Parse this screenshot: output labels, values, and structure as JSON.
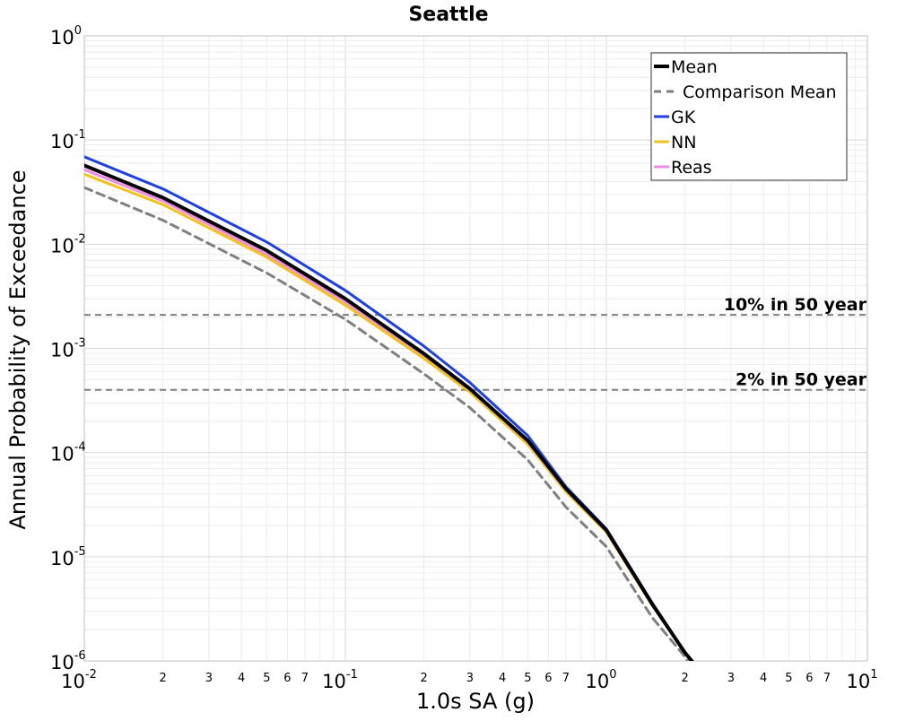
{
  "chart_data": {
    "type": "line",
    "title": "Seattle",
    "xlabel": "1.0s SA (g)",
    "ylabel": "Annual Probability of Exceedance",
    "x_scale": "log",
    "y_scale": "log",
    "xlim": [
      0.01,
      10
    ],
    "ylim": [
      1e-06,
      1
    ],
    "grid": true,
    "legend_position": "top-right",
    "x_major_ticks": [
      {
        "base": "10",
        "exp": "-2"
      },
      {
        "base": "10",
        "exp": "-1"
      },
      {
        "base": "10",
        "exp": "0"
      },
      {
        "base": "10",
        "exp": "1"
      }
    ],
    "x_minor_tick_labels": [
      "2",
      "3",
      "4",
      "5",
      "6",
      "7"
    ],
    "y_major_ticks": [
      {
        "base": "10",
        "exp": "0"
      },
      {
        "base": "10",
        "exp": "-1"
      },
      {
        "base": "10",
        "exp": "-2"
      },
      {
        "base": "10",
        "exp": "-3"
      },
      {
        "base": "10",
        "exp": "-4"
      },
      {
        "base": "10",
        "exp": "-5"
      },
      {
        "base": "10",
        "exp": "-6"
      }
    ],
    "reference_lines": [
      {
        "label": "10% in 50 year",
        "y": 0.0021,
        "color": "#7f7f7f"
      },
      {
        "label": "2% in 50 year",
        "y": 0.0004,
        "color": "#7f7f7f"
      }
    ],
    "series": [
      {
        "name": "Mean",
        "color": "#000000",
        "dash": "solid",
        "x": [
          0.01,
          0.02,
          0.05,
          0.1,
          0.2,
          0.3,
          0.5,
          0.7,
          1.0,
          1.5,
          2.0,
          2.2
        ],
        "y": [
          0.057,
          0.028,
          0.0087,
          0.003,
          0.00089,
          0.00041,
          0.00013,
          4.5e-05,
          1.8e-05,
          3.5e-06,
          1.2e-06,
          9e-07
        ]
      },
      {
        "name": "Comparison Mean",
        "color": "#7f7f7f",
        "dash": "dashed",
        "x": [
          0.01,
          0.02,
          0.05,
          0.1,
          0.2,
          0.3,
          0.5,
          0.7,
          1.0,
          1.5,
          2.0,
          2.1
        ],
        "y": [
          0.035,
          0.017,
          0.0053,
          0.0019,
          0.00057,
          0.00027,
          8.5e-05,
          3e-05,
          1.25e-05,
          2.6e-06,
          1.1e-06,
          9e-07
        ]
      },
      {
        "name": "GK",
        "color": "#1f3fe6",
        "dash": "solid",
        "x": [
          0.01,
          0.02,
          0.05,
          0.1,
          0.2,
          0.3,
          0.5,
          0.7,
          1.0,
          1.5,
          2.0,
          2.2
        ],
        "y": [
          0.069,
          0.034,
          0.0105,
          0.0036,
          0.00105,
          0.00047,
          0.000145,
          4.7e-05,
          1.85e-05,
          3.6e-06,
          1.2e-06,
          9e-07
        ]
      },
      {
        "name": "NN",
        "color": "#f2c21b",
        "dash": "solid",
        "x": [
          0.01,
          0.02,
          0.05,
          0.1,
          0.2,
          0.3,
          0.5,
          0.7,
          1.0,
          1.5,
          2.0,
          2.2
        ],
        "y": [
          0.047,
          0.024,
          0.0075,
          0.0026,
          0.0008,
          0.00038,
          0.00012,
          4.2e-05,
          1.72e-05,
          3.4e-06,
          1.2e-06,
          9e-07
        ]
      },
      {
        "name": "Reas",
        "color": "#f08ce6",
        "dash": "solid",
        "x": [
          0.01,
          0.02,
          0.05,
          0.1,
          0.2,
          0.3,
          0.5,
          0.7,
          1.0,
          1.5,
          2.0,
          2.2
        ],
        "y": [
          0.052,
          0.026,
          0.008,
          0.0028,
          0.00085,
          0.0004,
          0.000125,
          4.4e-05,
          1.75e-05,
          3.4e-06,
          1.2e-06,
          9e-07
        ]
      }
    ]
  }
}
